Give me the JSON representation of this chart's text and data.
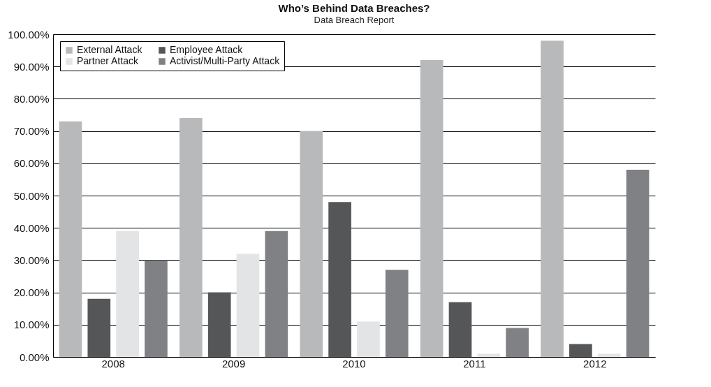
{
  "chart_data": {
    "type": "bar",
    "title": "Who’s Behind Data Breaches?",
    "subtitle": "Data Breach Report",
    "categories": [
      "2008",
      "2009",
      "2010",
      "2011",
      "2012"
    ],
    "series": [
      {
        "name": "External Attack",
        "color": "#b8b9bb",
        "values": [
          73,
          74,
          70,
          92,
          98
        ]
      },
      {
        "name": "Employee Attack",
        "color": "#555658",
        "values": [
          18,
          20,
          48,
          17,
          4
        ]
      },
      {
        "name": "Partner Attack",
        "color": "#e3e4e5",
        "values": [
          39,
          32,
          11,
          1,
          1
        ]
      },
      {
        "name": "Activist/Multi-Party Attack",
        "color": "#808184",
        "values": [
          30,
          39,
          27,
          9,
          58
        ]
      }
    ],
    "ylim": [
      0,
      100
    ],
    "yticks": [
      {
        "value": 0,
        "label": "0.00%"
      },
      {
        "value": 10,
        "label": "10.00%"
      },
      {
        "value": 20,
        "label": "20.00%"
      },
      {
        "value": 30,
        "label": "30.00%"
      },
      {
        "value": 40,
        "label": "40.00%"
      },
      {
        "value": 50,
        "label": "50.00%"
      },
      {
        "value": 60,
        "label": "60.00%"
      },
      {
        "value": 70,
        "label": "70.00%"
      },
      {
        "value": 80,
        "label": "80.00%"
      },
      {
        "value": 90,
        "label": "90.00%"
      },
      {
        "value": 100,
        "label": "100.00%"
      }
    ],
    "grid": "y",
    "legend": "top left"
  }
}
